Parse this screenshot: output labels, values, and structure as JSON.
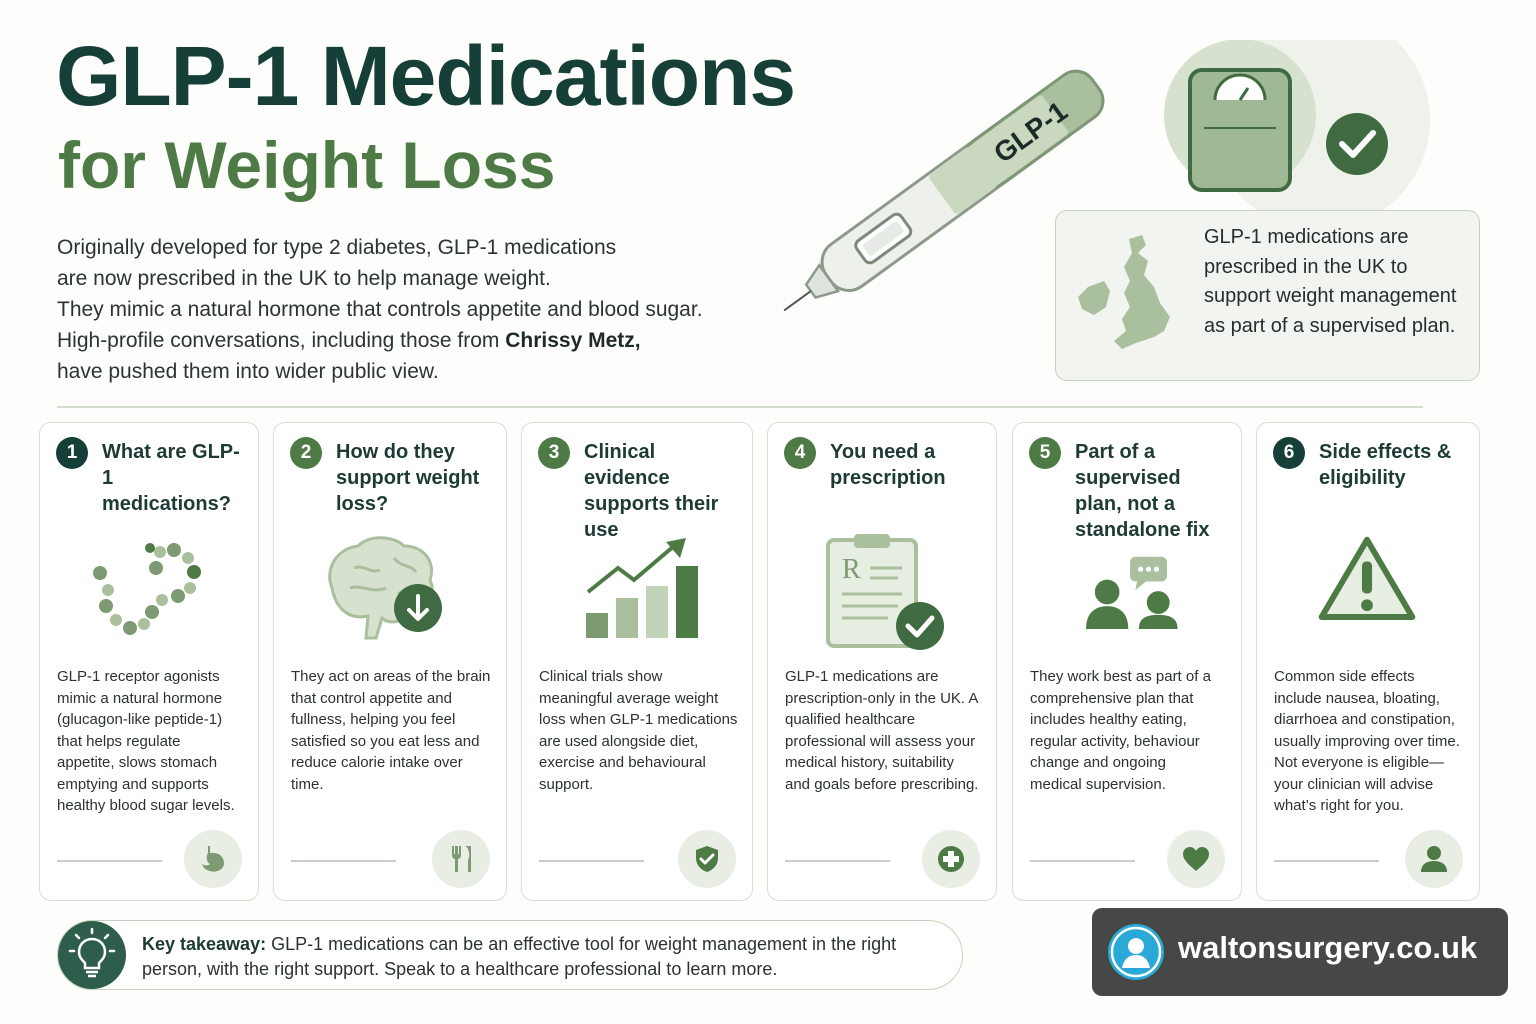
{
  "header": {
    "title_line1": "GLP-1 Medications",
    "title_line2": "for Weight Loss"
  },
  "intro": {
    "line1": "Originally developed for type 2 diabetes, GLP-1 medications",
    "line2": "are now prescribed in the UK to help manage weight.",
    "line3": "They mimic a natural hormone that controls appetite and blood sugar.",
    "line4_pre": "High-profile conversations, including those from ",
    "line4_bold": "Chrissy Metz,",
    "line5": "have pushed them into wider public view."
  },
  "pen": {
    "label": "GLP-1"
  },
  "uk_box": {
    "text": "GLP-1 medications are prescribed in the UK to support weight management as part of a supervised plan."
  },
  "cards": [
    {
      "number": "1",
      "title": "What are GLP-1 medications?",
      "body": "GLP-1 receptor agonists mimic a natural hormone (glucagon-like peptide-1) that helps regulate appetite, slows stomach emptying and supports healthy blood sugar levels.",
      "icon": "molecule-icon",
      "badge_icon": "stomach-icon",
      "number_color": "#163f38"
    },
    {
      "number": "2",
      "title": "How do they support weight loss?",
      "body": "They act on areas of the brain that control appetite and fullness, helping you feel satisfied so you eat less and reduce calorie intake over time.",
      "icon": "brain-icon",
      "badge_icon": "fork-knife-icon",
      "number_color": "#4e7a45"
    },
    {
      "number": "3",
      "title": "Clinical evidence supports their use",
      "body": "Clinical trials show meaningful average weight loss when GLP-1 medications are used alongside diet, exercise and behavioural support.",
      "icon": "growth-chart-icon",
      "badge_icon": "shield-check-icon",
      "number_color": "#4e7a45"
    },
    {
      "number": "4",
      "title": "You need a prescription",
      "body": "GLP-1 medications are prescription-only in the UK. A qualified healthcare professional will assess your medical history, suitability and goals before prescribing.",
      "icon": "prescription-clipboard-icon",
      "badge_icon": "medical-cross-icon",
      "number_color": "#4e7a45"
    },
    {
      "number": "5",
      "title": "Part of a supervised plan, not a standalone fix",
      "body": "They work best as part of a comprehensive plan that includes healthy eating, regular activity, behaviour change and ongoing medical supervision.",
      "icon": "people-chat-icon",
      "badge_icon": "heart-icon",
      "number_color": "#4e7a45"
    },
    {
      "number": "6",
      "title": "Side effects & eligibility",
      "body": "Common side effects include nausea, bloating, diarrhoea and constipation, usually improving over time. Not everyone is eligible—your clinician will advise what’s right for you.",
      "icon": "warning-icon",
      "badge_icon": "person-icon",
      "number_color": "#163f38"
    }
  ],
  "takeaway": {
    "label": "Key takeaway:",
    "text": " GLP-1 medications can be an effective tool for weight management in the right person, with the right support. Speak to a healthcare professional to learn more."
  },
  "brand": {
    "site": "waltonsurgery.co.uk"
  },
  "colors": {
    "dark_green": "#163f38",
    "mid_green": "#4e7a45",
    "light_green": "#a9bf9d",
    "pale_green": "#e8eee4"
  }
}
